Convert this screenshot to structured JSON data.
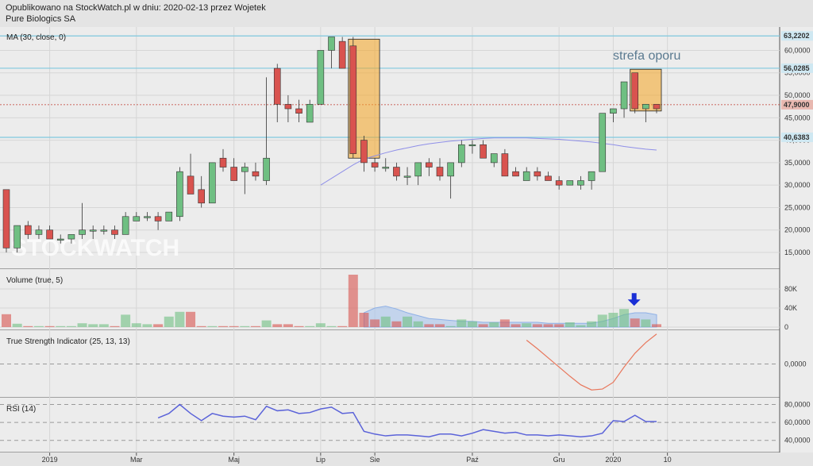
{
  "header": {
    "line1": "Opublikowano na StockWatch.pl w dniu: 2020-02-13 przez Wojetek",
    "line2": "Pure Biologics SA"
  },
  "watermark": "STOCKWATCH",
  "colors": {
    "up": "#6fbf82",
    "down": "#d9534f",
    "hline": "#7fc8de",
    "ma": "#8f8fe8",
    "highlight": "#f5a623",
    "tsi": "#e8775c",
    "rsi": "#5b63d9",
    "arrow": "#1a2fd6",
    "current": "#c0392b"
  },
  "chart_data": [
    {
      "type": "candlestick",
      "title": "MA (30, close, 0)",
      "annotation": "strefa oporu",
      "x_labels": [
        {
          "text": "2019",
          "i": 4
        },
        {
          "text": "Mar",
          "i": 12
        },
        {
          "text": "Maj",
          "i": 21
        },
        {
          "text": "Lip",
          "i": 29
        },
        {
          "text": "Sie",
          "i": 34
        },
        {
          "text": "Paź",
          "i": 43
        },
        {
          "text": "Gru",
          "i": 51
        },
        {
          "text": "2020",
          "i": 56
        },
        {
          "text": "10",
          "i": 61
        }
      ],
      "y_ticks": [
        15000,
        20000,
        25000,
        30000,
        35000,
        40000,
        45000,
        50000,
        55000,
        60000
      ],
      "y_tick_labels": [
        "15,0000",
        "20,0000",
        "25,0000",
        "30,0000",
        "35,0000",
        "40,0000",
        "45,0000",
        "50,0000",
        "55,0000",
        "60,0000"
      ],
      "ylim": [
        12000,
        64500
      ],
      "horizontal_lines": [
        {
          "value": 63.2202,
          "label": "63,2202"
        },
        {
          "value": 56.0285,
          "label": "56,0285"
        },
        {
          "value": 40.6383,
          "label": "40,6383"
        }
      ],
      "current": {
        "value": 47.9,
        "label": "47,9000"
      },
      "highlight_boxes": [
        {
          "from": 32,
          "to": 34,
          "low": 36.0,
          "high": 62.5
        },
        {
          "from": 58,
          "to": 60,
          "low": 46.5,
          "high": 55.8
        }
      ],
      "ohlc": [
        [
          29,
          29,
          15,
          16
        ],
        [
          16,
          21,
          15,
          21
        ],
        [
          21,
          22,
          18,
          19
        ],
        [
          19,
          21,
          18,
          20
        ],
        [
          20,
          21,
          18,
          18
        ],
        [
          18,
          19,
          17,
          18
        ],
        [
          18,
          19,
          17,
          19
        ],
        [
          19,
          26,
          18,
          20
        ],
        [
          20,
          21,
          18,
          20
        ],
        [
          20,
          21,
          19,
          20
        ],
        [
          20,
          21,
          18,
          19
        ],
        [
          19,
          24,
          19,
          23
        ],
        [
          22,
          24,
          22,
          23
        ],
        [
          23,
          24,
          22,
          23
        ],
        [
          23,
          24,
          20,
          22
        ],
        [
          22,
          24,
          22,
          24
        ],
        [
          23,
          34,
          22,
          33
        ],
        [
          32,
          37,
          28,
          28
        ],
        [
          29,
          32,
          25,
          26
        ],
        [
          26,
          35,
          26,
          35
        ],
        [
          36,
          38,
          33,
          34
        ],
        [
          34,
          36,
          31,
          31
        ],
        [
          33,
          35,
          28,
          34
        ],
        [
          33,
          35,
          31,
          32
        ],
        [
          31,
          54,
          30,
          36
        ],
        [
          56,
          57,
          44,
          48
        ],
        [
          48,
          50,
          44,
          47
        ],
        [
          47,
          49,
          44,
          46
        ],
        [
          44,
          49,
          44,
          48
        ],
        [
          48,
          57,
          48,
          60
        ],
        [
          60,
          63,
          56,
          63
        ],
        [
          62,
          63,
          56,
          56
        ],
        [
          61,
          63,
          36,
          37
        ],
        [
          40,
          41,
          33,
          35
        ],
        [
          35,
          36,
          33,
          34
        ],
        [
          34,
          36,
          33,
          34
        ],
        [
          34,
          35,
          31,
          32
        ],
        [
          32,
          34,
          30,
          32
        ],
        [
          32,
          35,
          30,
          35
        ],
        [
          35,
          36,
          32,
          34
        ],
        [
          34,
          36,
          31,
          32
        ],
        [
          32,
          34,
          27,
          35
        ],
        [
          35,
          40,
          34,
          39
        ],
        [
          39,
          40,
          37,
          39
        ],
        [
          39,
          40,
          36,
          36
        ],
        [
          35,
          37,
          34,
          37
        ],
        [
          37,
          38,
          32,
          32
        ],
        [
          33,
          34,
          32,
          32
        ],
        [
          31,
          34,
          31,
          33
        ],
        [
          33,
          34,
          31,
          32
        ],
        [
          32,
          33,
          31,
          31
        ],
        [
          31,
          32,
          29,
          30
        ],
        [
          30,
          31,
          30,
          31
        ],
        [
          30,
          32,
          29,
          31
        ],
        [
          31,
          32,
          29,
          33
        ],
        [
          33,
          36,
          33,
          46
        ],
        [
          46,
          46,
          44,
          47
        ],
        [
          47,
          47,
          45,
          53
        ],
        [
          55,
          55,
          46,
          47
        ],
        [
          47,
          48,
          44,
          48
        ],
        [
          48,
          48,
          46,
          47
        ]
      ],
      "ma": [
        null,
        null,
        null,
        null,
        null,
        null,
        null,
        null,
        null,
        null,
        null,
        null,
        null,
        null,
        null,
        null,
        null,
        null,
        null,
        null,
        null,
        null,
        null,
        null,
        null,
        null,
        null,
        null,
        null,
        30.0,
        31.5,
        33.0,
        34.5,
        35.8,
        36.5,
        37.2,
        37.8,
        38.3,
        38.8,
        39.2,
        39.5,
        39.8,
        40.0,
        40.2,
        40.4,
        40.5,
        40.5,
        40.5,
        40.5,
        40.4,
        40.3,
        40.2,
        40.0,
        39.8,
        39.6,
        39.3,
        39.0,
        38.6,
        38.3,
        38.0,
        37.8
      ]
    },
    {
      "type": "bar",
      "title": "Volume (true, 5)",
      "y_ticks": [
        0,
        40,
        80
      ],
      "y_tick_labels": [
        "0",
        "40K",
        "80K"
      ],
      "ylim": [
        0,
        115
      ],
      "values": [
        27,
        7,
        2,
        2,
        2,
        2,
        2,
        8,
        6,
        6,
        2,
        26,
        8,
        6,
        6,
        22,
        32,
        32,
        2,
        2,
        2,
        2,
        2,
        2,
        14,
        6,
        6,
        2,
        2,
        8,
        2,
        2,
        110,
        30,
        16,
        22,
        12,
        22,
        12,
        6,
        6,
        2,
        16,
        12,
        6,
        10,
        16,
        6,
        8,
        6,
        6,
        6,
        10,
        4,
        12,
        26,
        30,
        38,
        18,
        16,
        6
      ],
      "ma": [
        null,
        null,
        null,
        null,
        null,
        null,
        null,
        null,
        null,
        null,
        null,
        null,
        null,
        null,
        null,
        null,
        null,
        null,
        null,
        null,
        null,
        null,
        null,
        null,
        null,
        null,
        null,
        null,
        null,
        null,
        null,
        null,
        null,
        30,
        40,
        44,
        38,
        30,
        24,
        18,
        16,
        14,
        12,
        12,
        10,
        10,
        10,
        10,
        10,
        10,
        8,
        8,
        8,
        8,
        8,
        12,
        18,
        26,
        30,
        30,
        26
      ]
    },
    {
      "type": "line",
      "title": "True Strength Indicator (25, 13, 13)",
      "y_ticks": [
        0
      ],
      "y_tick_labels": [
        "0,0000"
      ],
      "ylim": [
        -1,
        1
      ],
      "values": [
        null,
        null,
        null,
        null,
        null,
        null,
        null,
        null,
        null,
        null,
        null,
        null,
        null,
        null,
        null,
        null,
        null,
        null,
        null,
        null,
        null,
        null,
        null,
        null,
        null,
        null,
        null,
        null,
        null,
        null,
        null,
        null,
        null,
        null,
        null,
        null,
        null,
        null,
        null,
        null,
        null,
        null,
        null,
        null,
        null,
        null,
        null,
        null,
        0.78,
        0.5,
        0.2,
        -0.1,
        -0.4,
        -0.68,
        -0.85,
        -0.82,
        -0.6,
        -0.1,
        0.35,
        0.7,
        0.98
      ]
    },
    {
      "type": "line",
      "title": "RSI (14)",
      "y_ticks": [
        40,
        60,
        80
      ],
      "y_tick_labels": [
        "40,0000",
        "60,0000",
        "80,0000"
      ],
      "ylim": [
        30,
        84
      ],
      "values": [
        null,
        null,
        null,
        null,
        null,
        null,
        null,
        null,
        null,
        null,
        null,
        null,
        null,
        null,
        65,
        70,
        80,
        70,
        62,
        70,
        67,
        66,
        67,
        63,
        78,
        73,
        74,
        70,
        71,
        75,
        77,
        70,
        71,
        50,
        47,
        45,
        46,
        46,
        45,
        44,
        47,
        47,
        45,
        48,
        52,
        50,
        48,
        49,
        46,
        46,
        45,
        46,
        45,
        44,
        45,
        48,
        62,
        61,
        68,
        61,
        61
      ]
    }
  ]
}
